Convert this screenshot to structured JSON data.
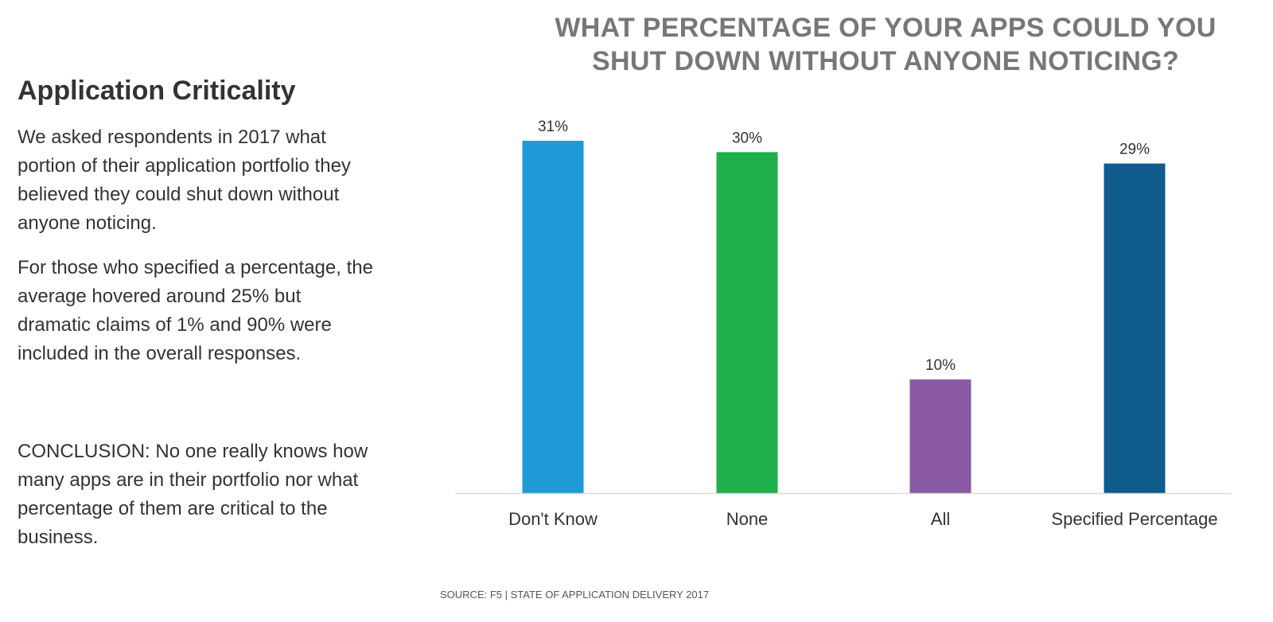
{
  "panel": {
    "heading": "Application Criticality",
    "paragraph1": "We asked respondents in 2017 what portion of their application portfolio they believed they could shut down without anyone noticing.",
    "paragraph2": "For those who specified a percentage, the average hovered around 25% but dramatic claims of 1% and 90% were included in the overall responses.",
    "conclusion": "CONCLUSION: No one really knows how many apps are in their portfolio nor what percentage of them are critical to the business."
  },
  "source": "SOURCE: F5 | STATE OF APPLICATION DELIVERY 2017",
  "chart_data": {
    "type": "bar",
    "title": "WHAT PERCENTAGE OF YOUR APPS COULD YOU SHUT DOWN WITHOUT ANYONE NOTICING?",
    "categories": [
      "Don't Know",
      "None",
      "All",
      "Specified Percentage"
    ],
    "values": [
      31,
      30,
      10,
      29
    ],
    "data_labels": [
      "31%",
      "30%",
      "10%",
      "29%"
    ],
    "colors": [
      "#1f9ad6",
      "#1eb04a",
      "#8a5aa5",
      "#0f5b8c"
    ],
    "xlabel": "",
    "ylabel": "",
    "ylim": [
      0,
      31
    ],
    "grid": false,
    "legend": "none"
  }
}
